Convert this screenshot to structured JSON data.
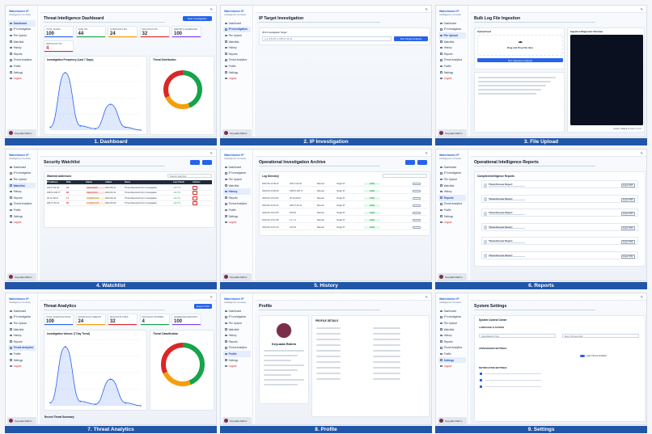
{
  "brand": {
    "name": "Watchtower IP",
    "tagline": "Intelligence Console"
  },
  "nav": [
    "Dashboard",
    "IP Investigation",
    "File Upload",
    "Watchlist",
    "History",
    "Reports",
    "Threat Analytics",
    "Profile",
    "Settings",
    "Logout"
  ],
  "user": {
    "name": "Keyuada Rahim"
  },
  "panels": [
    {
      "caption": "1. Dashboard"
    },
    {
      "caption": "2. IP Investigation"
    },
    {
      "caption": "3. File Upload"
    },
    {
      "caption": "4. Watchlist"
    },
    {
      "caption": "5. History"
    },
    {
      "caption": "6. Reports"
    },
    {
      "caption": "7. Threat Analytics"
    },
    {
      "caption": "8. Profile"
    },
    {
      "caption": "9. Settings"
    }
  ],
  "dashboard": {
    "title": "Threat Intelligence Dashboard",
    "button": "New Investigation",
    "stats": [
      {
        "label": "Total Scans",
        "value": "100",
        "color": "#2563eb"
      },
      {
        "label": "Safe IPs",
        "value": "44",
        "color": "#16a34a"
      },
      {
        "label": "Suspicious IPs",
        "value": "24",
        "color": "#f59e0b"
      },
      {
        "label": "Malicious IPs",
        "value": "32",
        "color": "#dc2626"
      },
      {
        "label": "Reports Generated",
        "value": "100",
        "color": "#7c3aed"
      }
    ],
    "watchlist_label": "Watchlist IPs",
    "watchlist_value": "4",
    "chart1_title": "Investigation Frequency (Last 7 Days)",
    "chart2_title": "Threat Distribution"
  },
  "ip": {
    "title": "IP Target Investigation",
    "field_label": "IPv4 Investigation Target",
    "placeholder": "e.g. 8.8.8.8 or 185.27.40.14",
    "button": "Run Target Analysis"
  },
  "upload": {
    "title": "Bulk Log File Ingestion",
    "left_title": "Upload Feed",
    "drop_text": "Drag and Drop File Here",
    "button": "Run Ingestion Analysis",
    "right_title": "Ingestion Diagnostic Terminal",
    "terminal_footer": "Ready  |  Waiting for input  |  v1.1.0"
  },
  "watchlist": {
    "title": "Security Watchlist",
    "table_title": "Watched Addresses",
    "search": "Search watchlist",
    "columns": [
      "IP Address",
      "Risk",
      "Status",
      "Added",
      "Notes",
      "Last Check",
      "Actions"
    ],
    "rows": [
      {
        "ip": "203.0.113.42",
        "risk": "94",
        "status": "MALICIOUS",
        "date": "2024-05-11",
        "note": "Threat Reported from Investigation",
        "pct": "+42.7%"
      },
      {
        "ip": "198.51.100.77",
        "risk": "88",
        "status": "MALICIOUS",
        "date": "2024-05-11",
        "note": "Threat Reported from Investigation",
        "pct": "+42.7%"
      },
      {
        "ip": "45.13.240.9",
        "risk": "71",
        "status": "SUSPICIOUS",
        "date": "2024-05-10",
        "note": "Threat Reported from Investigation",
        "pct": "+42.7%"
      },
      {
        "ip": "185.27.40.14",
        "risk": "66",
        "status": "SUSPICIOUS",
        "date": "2024-05-09",
        "note": "Threat Reported from Investigation",
        "pct": "+42.7%"
      }
    ]
  },
  "history": {
    "title": "Operational Investigation Archive",
    "table_title": "Log Directory",
    "rows": [
      {
        "date": "2024-05-10 09:12",
        "ip": "203.0.113.42",
        "src": "Manual",
        "type": "Single IP",
        "status": "SAFE"
      },
      {
        "date": "2024-05-10 09:30",
        "ip": "198.51.100.77",
        "src": "Manual",
        "type": "Single IP",
        "status": "SAFE"
      },
      {
        "date": "2024-05-10 10:02",
        "ip": "45.13.240.9",
        "src": "Manual",
        "type": "Single IP",
        "status": "SAFE"
      },
      {
        "date": "2024-05-10 10:41",
        "ip": "185.27.40.14",
        "src": "Manual",
        "type": "Single IP",
        "status": "SAFE"
      },
      {
        "date": "2024-05-10 11:05",
        "ip": "8.8.8.8",
        "src": "Manual",
        "type": "Single IP",
        "status": "SAFE"
      },
      {
        "date": "2024-05-10 11:48",
        "ip": "1.1.1.1",
        "src": "Manual",
        "type": "Single IP",
        "status": "SAFE"
      },
      {
        "date": "2024-05-10 12:10",
        "ip": "9.9.9.9",
        "src": "Manual",
        "type": "Single IP",
        "status": "SAFE"
      }
    ]
  },
  "reports": {
    "title": "Operational Intelligence Reports",
    "section": "Compiled Intelligence Reports",
    "item": "Threat Dossier Report",
    "download": "Export PDF"
  },
  "analytics": {
    "title": "Threat Analytics",
    "button": "Export CSV",
    "stats": [
      {
        "label": "Total Investigations",
        "value": "100",
        "color": "#2563eb"
      },
      {
        "label": "Suspicious Threats",
        "value": "24",
        "color": "#f59e0b"
      },
      {
        "label": "Malicious Sites",
        "value": "32",
        "color": "#dc2626"
      },
      {
        "label": "Watchlist Entries",
        "value": "4",
        "color": "#16a34a"
      },
      {
        "label": "Generated Reports",
        "value": "100",
        "color": "#7c3aed"
      }
    ],
    "chart1_title": "Investigation Volume (7 Day Trend)",
    "chart2_title": "Threat Classification",
    "bottom": "Recent Threat Summary"
  },
  "profile": {
    "title": "Profile",
    "name": "Keyuada Rahim",
    "details_title": "PROFILE DETAILS"
  },
  "settings": {
    "title": "System Settings",
    "card_title": "System Control Center",
    "sec1": "LANGUAGE & ACCESS",
    "default_tz": "Asia/Jakarta Time",
    "refresh": "Every 30 seconds",
    "sec2": "APPEARANCE SETTINGS",
    "toggle": "Light Theme Enabled",
    "sec3": "NOTIFICATION SETTINGS"
  },
  "chart_data": [
    {
      "type": "area",
      "title": "Investigation Frequency (Last 7 Days)",
      "x": [
        "Mon",
        "Tue",
        "Wed",
        "Thu",
        "Fri",
        "Sat",
        "Sun"
      ],
      "series": [
        {
          "values": [
            2,
            40,
            3,
            1,
            18,
            2,
            0
          ]
        }
      ]
    },
    {
      "type": "pie",
      "title": "Threat Distribution",
      "categories": [
        "Safe",
        "Suspicious",
        "Malicious"
      ],
      "values": [
        44,
        24,
        32
      ],
      "colors": [
        "#16a34a",
        "#f59e0b",
        "#dc2626"
      ]
    }
  ]
}
